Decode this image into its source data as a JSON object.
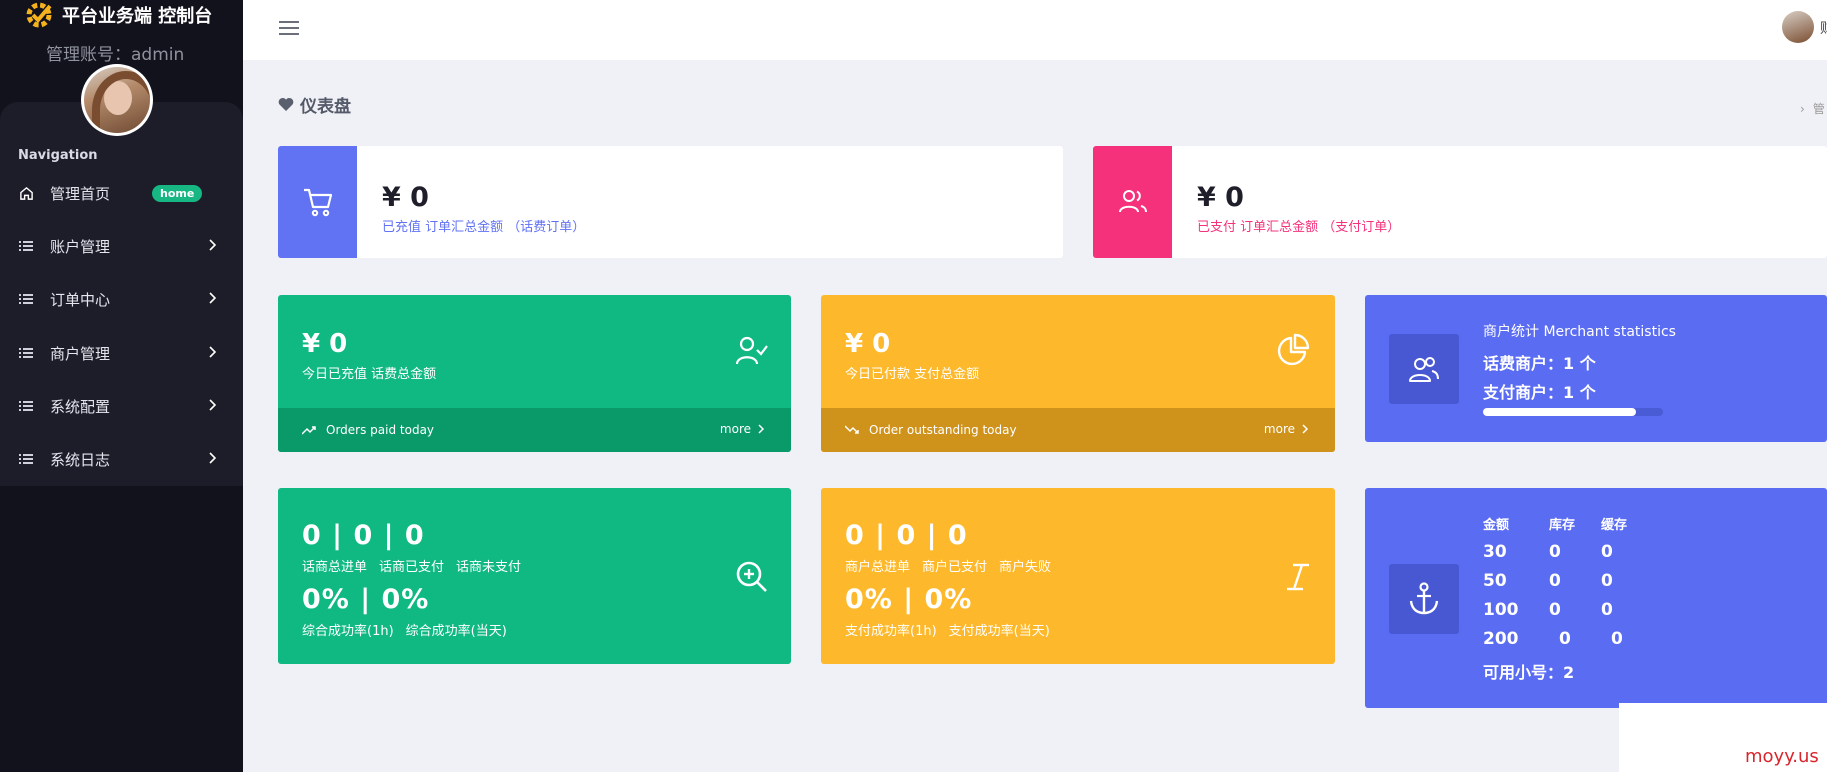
{
  "brand": {
    "title": "平台业务端 控制台",
    "account": "管理账号：admin",
    "logo_icon": "gear-check-logo"
  },
  "sidebar": {
    "heading": "Navigation",
    "items": [
      {
        "label": "管理首页",
        "icon": "home-icon",
        "badge": "home"
      },
      {
        "label": "账户管理",
        "icon": "list-icon"
      },
      {
        "label": "订单中心",
        "icon": "list-icon"
      },
      {
        "label": "商户管理",
        "icon": "list-icon"
      },
      {
        "label": "系统配置",
        "icon": "list-icon"
      },
      {
        "label": "系统日志",
        "icon": "list-icon"
      }
    ]
  },
  "topbar": {
    "user_name": "财"
  },
  "page": {
    "title": "仪表盘",
    "breadcrumb": "管"
  },
  "cards": {
    "recharge_total": {
      "amount": "¥ 0",
      "desc": "已充值 订单汇总金额 （话费订单）",
      "accent": "#6172f3"
    },
    "paid_total": {
      "amount": "¥ 0",
      "desc": "已支付 订单汇总金额 （支付订单）",
      "accent": "#f5317b"
    },
    "today_recharge": {
      "amount": "¥ 0",
      "sub": "今日已充值 话费总金额",
      "foot": "Orders paid today",
      "more": "more"
    },
    "today_paid": {
      "amount": "¥ 0",
      "sub": "今日已付款 支付总金额",
      "foot": "Order outstanding today",
      "more": "more"
    },
    "merchant_stats": {
      "title": "商户统计 Merchant statistics",
      "line1": "话费商户：1 个",
      "line2": "支付商户：1 个",
      "progress": 0.85
    },
    "telecom_orders": {
      "nums": "0 | 0 | 0",
      "labels": [
        "话商总进单",
        "话商已支付",
        "话商未支付"
      ],
      "rates": "0% | 0%",
      "rate_labels": [
        "综合成功率(1h)",
        "综合成功率(当天)"
      ]
    },
    "merchant_orders": {
      "nums": "0 | 0 | 0",
      "labels": [
        "商户总进单",
        "商户已支付",
        "商户失败"
      ],
      "rates": "0% | 0%",
      "rate_labels": [
        "支付成功率(1h)",
        "支付成功率(当天)"
      ]
    },
    "inventory": {
      "headers": [
        "金额",
        "库存",
        "缓存"
      ],
      "rows": [
        [
          "30",
          "0",
          "0"
        ],
        [
          "50",
          "0",
          "0"
        ],
        [
          "100",
          "0",
          "0"
        ],
        [
          "200",
          "0",
          "0"
        ]
      ],
      "available": "可用小号：2"
    }
  },
  "colors": {
    "green": "#10b982",
    "green_dark": "#0a9a6a",
    "yellow": "#fdb92b",
    "yellow_dark": "#cf921b",
    "blue": "#5a6cf2"
  },
  "watermark": "moyy.us"
}
